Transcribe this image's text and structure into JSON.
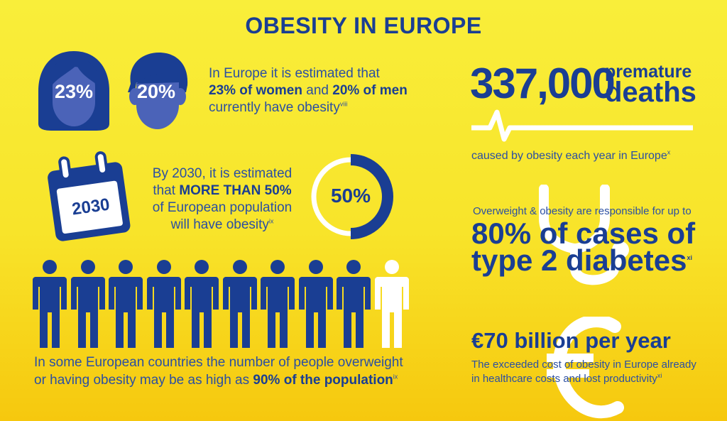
{
  "title": "OBESITY IN EUROPE",
  "women": {
    "pct_label": "23%",
    "icon": "woman-head-icon"
  },
  "men": {
    "pct_label": "20%",
    "icon": "man-head-icon"
  },
  "gender_text": {
    "line1": "In Europe it is estimated that",
    "women_bold": "23% of women",
    "and": " and ",
    "men_bold": "20% of men",
    "line3": "currently have obesity",
    "ref": "viii"
  },
  "calendar": {
    "year": "2030",
    "icon": "calendar-icon"
  },
  "forecast_text": {
    "line1": "By 2030, it is estimated",
    "line2_pre": "that ",
    "line2_bold": "MORE THAN 50%",
    "line3": "of European population",
    "line4": "will have obesity",
    "ref": "ix"
  },
  "ring": {
    "label": "50%",
    "fraction": 0.5,
    "color_fill": "#1a3e93",
    "color_track": "#ffffff"
  },
  "people": {
    "count": 10,
    "highlighted": 9,
    "color_highlight": "#1a3e93",
    "color_other": "#ffffff",
    "icon": "person-icon"
  },
  "population_text": {
    "line1": "In some European countries the number of people overweight",
    "line2_pre": "or having obesity may be as high as ",
    "line2_bold": "90% of the population",
    "ref": "ix"
  },
  "deaths": {
    "number": "337,000",
    "word1": "premature",
    "word2": "deaths",
    "caption": "caused by obesity each year in Europe",
    "ref": "x",
    "icon": "heartbeat-line-icon"
  },
  "diabetes": {
    "intro": "Overweight & obesity are responsible for up to",
    "line1": "80% of cases of",
    "line2": "type 2 diabetes",
    "ref": "xi",
    "icon": "stethoscope-icon"
  },
  "cost": {
    "headline": "€70 billion per year",
    "line1": "The exceeded cost of obesity in Europe already",
    "line2": "in healthcare costs and lost productivity",
    "ref": "xi",
    "icon": "euro-icon"
  },
  "colors": {
    "navy": "#1a3e93",
    "text_blue": "#2b4fa2",
    "face_blue": "#4b63b8",
    "background_top": "#f9ee3a",
    "background_bottom": "#f6c80e"
  }
}
